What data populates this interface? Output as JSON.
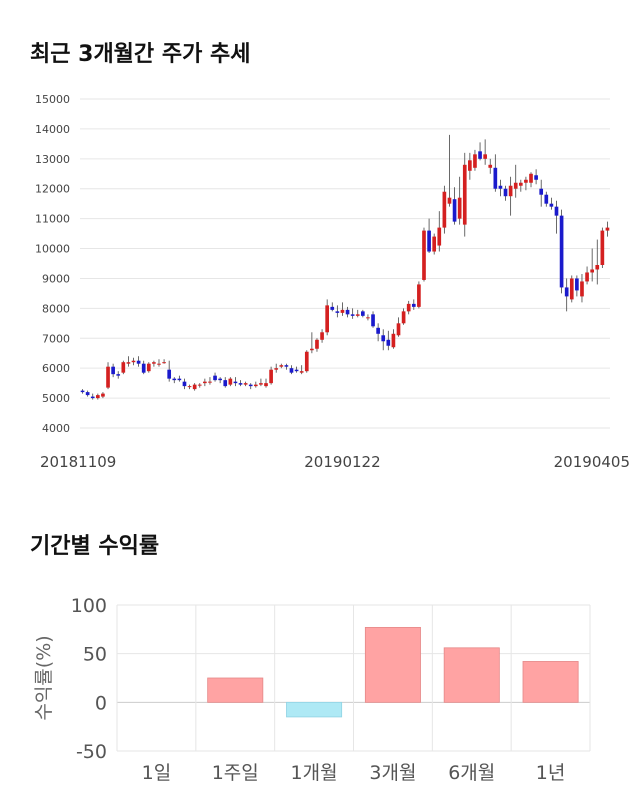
{
  "candle_section": {
    "title": "최근 3개월간 주가 추세",
    "chart_data": {
      "type": "candlestick",
      "title": "",
      "ylim": [
        4000,
        15000
      ],
      "yticks": [
        "15000",
        "14000",
        "13000",
        "12000",
        "11000",
        "10000",
        "9000",
        "8000",
        "7000",
        "6000",
        "5000",
        "4000"
      ],
      "ytick_values": [
        15000,
        14000,
        13000,
        12000,
        11000,
        10000,
        9000,
        8000,
        7000,
        6000,
        5000,
        4000
      ],
      "xtick_labels": [
        "20181109",
        "20190122",
        "20190405"
      ],
      "xtick_index": [
        0,
        51,
        102
      ],
      "grid": true,
      "colors": {
        "up": "#d42020",
        "down": "#1a1acc",
        "wick": "#444444"
      },
      "candles": [
        [
          5250,
          5300,
          5150,
          5200
        ],
        [
          5200,
          5250,
          5050,
          5100
        ],
        [
          5050,
          5150,
          4950,
          5000
        ],
        [
          5000,
          5150,
          4950,
          5100
        ],
        [
          5050,
          5200,
          5000,
          5150
        ],
        [
          5350,
          6200,
          5300,
          6050
        ],
        [
          6050,
          6150,
          5700,
          5800
        ],
        [
          5800,
          5900,
          5650,
          5750
        ],
        [
          5850,
          6250,
          5800,
          6200
        ],
        [
          6150,
          6400,
          6050,
          6200
        ],
        [
          6200,
          6350,
          6100,
          6250
        ],
        [
          6250,
          6400,
          6050,
          6150
        ],
        [
          6150,
          6250,
          5800,
          5850
        ],
        [
          5900,
          6200,
          5850,
          6150
        ],
        [
          6150,
          6250,
          6050,
          6200
        ],
        [
          6150,
          6300,
          6050,
          6150
        ],
        [
          6200,
          6300,
          6150,
          6200
        ],
        [
          5950,
          6250,
          5550,
          5650
        ],
        [
          5650,
          5700,
          5500,
          5600
        ],
        [
          5650,
          5750,
          5550,
          5600
        ],
        [
          5550,
          5650,
          5300,
          5400
        ],
        [
          5400,
          5450,
          5300,
          5400
        ],
        [
          5300,
          5500,
          5250,
          5450
        ],
        [
          5450,
          5500,
          5350,
          5450
        ],
        [
          5500,
          5650,
          5400,
          5550
        ],
        [
          5550,
          5700,
          5450,
          5550
        ],
        [
          5750,
          5850,
          5550,
          5600
        ],
        [
          5650,
          5700,
          5500,
          5600
        ],
        [
          5600,
          5700,
          5350,
          5400
        ],
        [
          5450,
          5700,
          5400,
          5650
        ],
        [
          5550,
          5700,
          5400,
          5500
        ],
        [
          5500,
          5600,
          5400,
          5450
        ],
        [
          5450,
          5550,
          5400,
          5500
        ],
        [
          5450,
          5500,
          5300,
          5400
        ],
        [
          5400,
          5550,
          5350,
          5450
        ],
        [
          5450,
          5650,
          5400,
          5500
        ],
        [
          5400,
          5650,
          5350,
          5500
        ],
        [
          5500,
          6050,
          5450,
          5950
        ],
        [
          5950,
          6150,
          5850,
          6000
        ],
        [
          6050,
          6150,
          6000,
          6100
        ],
        [
          6100,
          6150,
          5950,
          6050
        ],
        [
          6000,
          6100,
          5800,
          5850
        ],
        [
          5950,
          6050,
          5850,
          5900
        ],
        [
          5850,
          6100,
          5800,
          5900
        ],
        [
          5900,
          6600,
          5850,
          6550
        ],
        [
          6600,
          7200,
          6500,
          6650
        ],
        [
          6650,
          7000,
          6550,
          6950
        ],
        [
          6950,
          7300,
          6850,
          7200
        ],
        [
          7200,
          8300,
          7100,
          8100
        ],
        [
          8050,
          8200,
          7900,
          7950
        ],
        [
          7900,
          8100,
          7700,
          7850
        ],
        [
          7850,
          8200,
          7750,
          7950
        ],
        [
          7950,
          8050,
          7700,
          7800
        ],
        [
          7800,
          8000,
          7650,
          7750
        ],
        [
          7750,
          7950,
          7700,
          7800
        ],
        [
          7900,
          7950,
          7700,
          7750
        ],
        [
          7700,
          7800,
          7600,
          7700
        ],
        [
          7800,
          7900,
          7350,
          7400
        ],
        [
          7350,
          7500,
          6900,
          7150
        ],
        [
          7100,
          7300,
          6600,
          6900
        ],
        [
          6950,
          7250,
          6600,
          6750
        ],
        [
          6700,
          7300,
          6650,
          7150
        ],
        [
          7100,
          7700,
          7050,
          7500
        ],
        [
          7500,
          8000,
          7450,
          7900
        ],
        [
          7900,
          8250,
          7800,
          8150
        ],
        [
          8150,
          8300,
          7950,
          8050
        ],
        [
          8050,
          8900,
          8000,
          8800
        ],
        [
          8950,
          10700,
          8900,
          10600
        ],
        [
          10600,
          11000,
          9850,
          9900
        ],
        [
          9900,
          10500,
          9800,
          10400
        ],
        [
          10100,
          11250,
          9900,
          10700
        ],
        [
          10700,
          12100,
          10500,
          11900
        ],
        [
          11500,
          13800,
          11400,
          11700
        ],
        [
          11650,
          12050,
          10800,
          10900
        ],
        [
          11000,
          12400,
          10800,
          11700
        ],
        [
          10800,
          13200,
          10400,
          12800
        ],
        [
          12600,
          13200,
          12300,
          12950
        ],
        [
          12700,
          13300,
          12600,
          13150
        ],
        [
          13250,
          13550,
          12950,
          13000
        ],
        [
          13000,
          13650,
          12800,
          13150
        ],
        [
          12700,
          13000,
          12500,
          12800
        ],
        [
          12700,
          13150,
          11900,
          12000
        ],
        [
          12100,
          12300,
          11750,
          12000
        ],
        [
          12000,
          12100,
          11600,
          11750
        ],
        [
          11750,
          12400,
          11100,
          12100
        ],
        [
          12000,
          12800,
          11700,
          12200
        ],
        [
          12100,
          12300,
          11900,
          12200
        ],
        [
          12200,
          12400,
          11950,
          12300
        ],
        [
          12200,
          12550,
          12050,
          12500
        ],
        [
          12450,
          12650,
          12150,
          12300
        ],
        [
          12000,
          12300,
          11400,
          11800
        ],
        [
          11800,
          11900,
          11400,
          11500
        ],
        [
          11500,
          11700,
          11300,
          11400
        ],
        [
          11400,
          11600,
          10500,
          11100
        ],
        [
          11100,
          11300,
          8500,
          8700
        ],
        [
          8700,
          9000,
          7900,
          8400
        ],
        [
          8300,
          9100,
          8200,
          9000
        ],
        [
          9000,
          9100,
          8400,
          8600
        ],
        [
          8400,
          9150,
          8200,
          8900
        ],
        [
          8900,
          9400,
          8800,
          9200
        ],
        [
          9200,
          10000,
          8900,
          9300
        ],
        [
          9300,
          10300,
          8800,
          9450
        ],
        [
          9450,
          10700,
          9350,
          10600
        ],
        [
          10600,
          10900,
          10400,
          10700
        ]
      ]
    }
  },
  "returns_section": {
    "title": "기간별 수익률",
    "chart_data": {
      "type": "bar",
      "title": "",
      "ylabel": "수익률(%)",
      "ylim": [
        -50,
        100
      ],
      "yticks": [
        "100",
        "50",
        "0",
        "-50"
      ],
      "ytick_values": [
        100,
        50,
        0,
        -50
      ],
      "categories": [
        "1일",
        "1주일",
        "1개월",
        "3개월",
        "6개월",
        "1년"
      ],
      "values": [
        0,
        25,
        -15,
        77,
        56,
        42
      ],
      "grid": true,
      "colors": {
        "positive": "#ffa3a3",
        "negative": "#aee9f5"
      }
    }
  }
}
